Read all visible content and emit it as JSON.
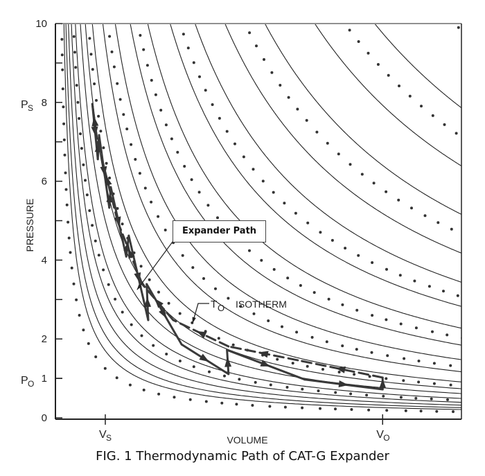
{
  "chart_data": {
    "type": "line",
    "title": "FIG. 1 Thermodynamic Path of CAT-G Expander",
    "xlabel": "VOLUME",
    "ylabel": "PRESSURE",
    "ylim": [
      0,
      10
    ],
    "xlim": [
      0,
      8.14
    ],
    "yticks": [
      {
        "value": 0,
        "label": "0"
      },
      {
        "value": 1,
        "label": "1"
      },
      {
        "value": 2,
        "label": "2"
      },
      {
        "value": 4,
        "label": "4"
      },
      {
        "value": 6,
        "label": "6"
      },
      {
        "value": 8,
        "label": "8"
      },
      {
        "value": 10,
        "label": "10"
      }
    ],
    "minor_yticks": [
      1,
      3,
      5,
      7,
      9
    ],
    "ymarkers": [
      {
        "value": 8,
        "label": "P",
        "sub": "S"
      },
      {
        "value": 1,
        "label": "P",
        "sub": "O"
      }
    ],
    "xmarkers": [
      {
        "value": 1.0,
        "label": "V",
        "sub": "S"
      },
      {
        "value": 6.56,
        "label": "V",
        "sub": "O"
      }
    ],
    "isotherms_solid_pv": [
      1.7,
      2.1,
      2.6,
      3.2,
      4.0,
      5.0,
      6.0,
      7.4,
      9.5,
      12,
      15,
      18.5,
      23,
      28,
      34,
      42,
      52,
      64
    ],
    "isotherms_dotted_pv": [
      1.25,
      3.6,
      6.6,
      10.5,
      16.5,
      25,
      38,
      58,
      80
    ],
    "expansion_path": {
      "name": "Expander Path",
      "style": "solid",
      "points": [
        [
          0.74,
          7.96
        ],
        [
          0.85,
          6.56
        ],
        [
          0.875,
          7.17
        ],
        [
          1.08,
          5.33
        ],
        [
          1.11,
          5.85
        ],
        [
          1.42,
          4.09
        ],
        [
          1.47,
          4.62
        ],
        [
          1.86,
          2.48
        ],
        [
          1.83,
          3.39
        ],
        [
          2.53,
          1.86
        ],
        [
          3.47,
          1.11
        ],
        [
          3.44,
          1.72
        ],
        [
          5.0,
          0.97
        ],
        [
          6.56,
          0.72
        ],
        [
          6.56,
          1.02
        ]
      ]
    },
    "return_path": {
      "style": "dashed",
      "points": [
        [
          6.56,
          1.02
        ],
        [
          4.86,
          1.46
        ],
        [
          3.47,
          1.81
        ],
        [
          2.36,
          2.48
        ],
        [
          1.74,
          3.39
        ],
        [
          1.25,
          4.97
        ],
        [
          0.83,
          7.08
        ],
        [
          0.74,
          7.96
        ]
      ]
    },
    "annotations": {
      "expander_path": "Expander Path",
      "isotherm_T": "T",
      "isotherm_sub": "O",
      "isotherm_text": "ISOTHERM"
    }
  },
  "colors": {
    "ink": "#222222",
    "path": "#3a3a3a"
  }
}
